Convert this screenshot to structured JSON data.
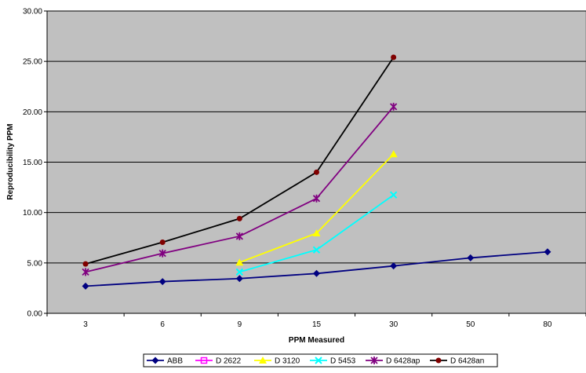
{
  "chart_data": {
    "type": "line",
    "title": "",
    "xlabel": "PPM Measured",
    "ylabel": "Reproducibility PPM",
    "categories": [
      "3",
      "6",
      "9",
      "15",
      "30",
      "50",
      "80"
    ],
    "ylim": [
      0,
      30
    ],
    "yticks": [
      "0.00",
      "5.00",
      "10.00",
      "15.00",
      "20.00",
      "25.00",
      "30.00"
    ],
    "grid": "horizontal",
    "legend_position": "bottom",
    "plot_background": "#c0c0c0",
    "series": [
      {
        "name": "ABB",
        "color": "#000080",
        "marker": "diamond",
        "values": [
          2.7,
          3.15,
          3.45,
          3.95,
          4.7,
          5.5,
          6.1
        ]
      },
      {
        "name": "D 2622",
        "color": "#ff00ff",
        "marker": "square",
        "values": [
          null,
          null,
          null,
          null,
          null,
          null,
          null
        ]
      },
      {
        "name": "D 3120",
        "color": "#ffff00",
        "marker": "triangle",
        "values": [
          null,
          null,
          5.05,
          7.95,
          15.8,
          null,
          null
        ]
      },
      {
        "name": "D 5453",
        "color": "#00ffff",
        "marker": "x",
        "values": [
          null,
          null,
          4.1,
          6.3,
          11.75,
          null,
          null
        ]
      },
      {
        "name": "D 6428ap",
        "color": "#800080",
        "marker": "star",
        "values": [
          4.1,
          5.95,
          7.65,
          11.4,
          20.5,
          null,
          null
        ]
      },
      {
        "name": "D 6428an",
        "color": "#000000",
        "markerColor": "#800000",
        "marker": "circle",
        "values": [
          4.9,
          7.05,
          9.4,
          14.0,
          25.4,
          null,
          null
        ]
      }
    ]
  }
}
